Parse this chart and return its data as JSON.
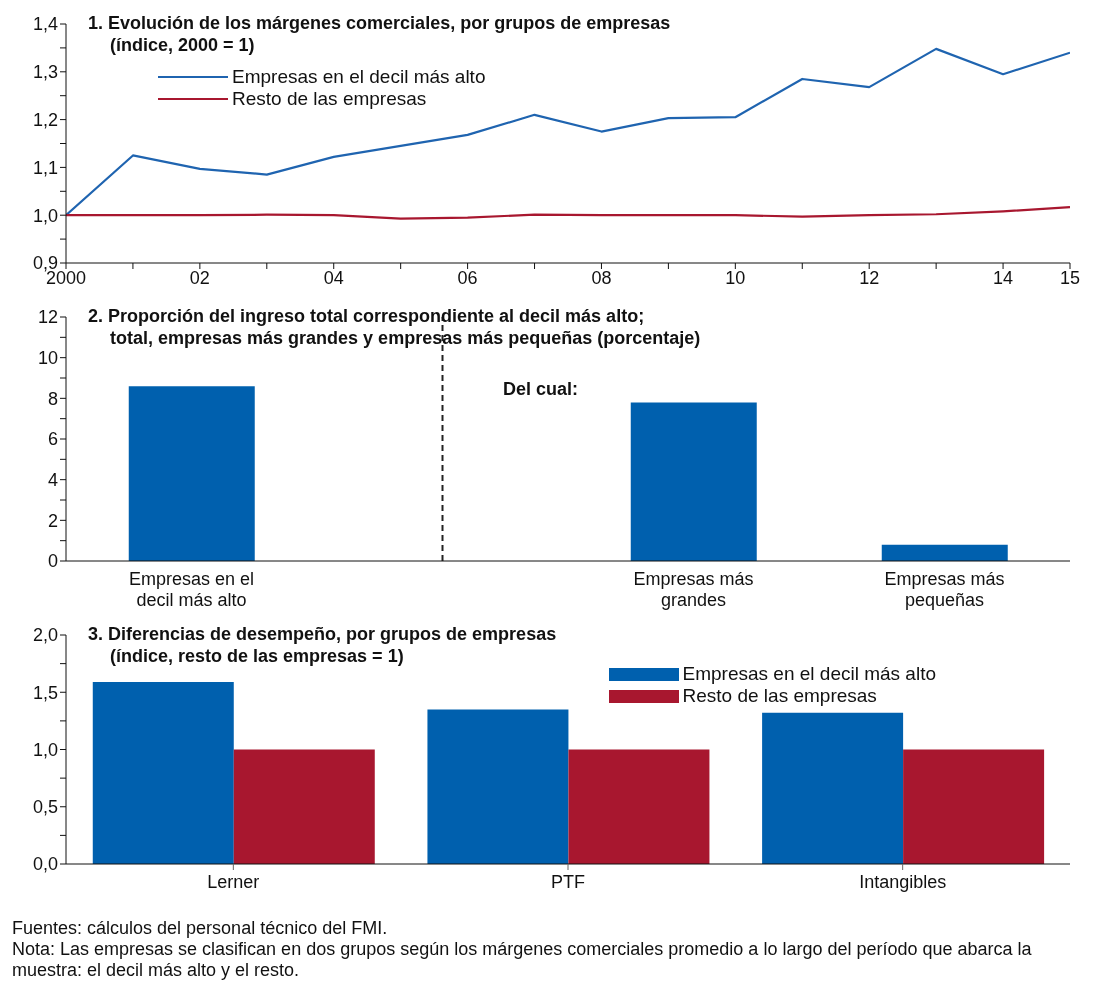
{
  "chart_data": [
    {
      "type": "line",
      "title": "1. Evolución de los márgenes comerciales, por grupos de empresas",
      "subtitle": "(índice, 2000 = 1)",
      "x": [
        2000,
        2001,
        2002,
        2003,
        2004,
        2005,
        2006,
        2007,
        2008,
        2009,
        2010,
        2011,
        2012,
        2013,
        2014,
        2015
      ],
      "series": [
        {
          "name": "Empresas en el decil más alto",
          "color": "#1f64b0",
          "values": [
            1.0,
            1.125,
            1.097,
            1.085,
            1.122,
            1.145,
            1.168,
            1.21,
            1.175,
            1.203,
            1.205,
            1.285,
            1.268,
            1.348,
            1.295,
            1.34
          ]
        },
        {
          "name": "Resto de las empresas",
          "color": "#a8172f",
          "values": [
            1.0,
            1.0,
            1.0,
            1.001,
            1.0,
            0.993,
            0.995,
            1.001,
            1.0,
            1.0,
            1.0,
            0.997,
            1.0,
            1.002,
            1.008,
            1.017
          ]
        }
      ],
      "xlim": [
        2000,
        2015
      ],
      "xticks": [
        {
          "value": 2000,
          "label": "2000"
        },
        {
          "value": 2001,
          "label": null
        },
        {
          "value": 2002,
          "label": "02"
        },
        {
          "value": 2003,
          "label": null
        },
        {
          "value": 2004,
          "label": "04"
        },
        {
          "value": 2005,
          "label": null
        },
        {
          "value": 2006,
          "label": "06"
        },
        {
          "value": 2007,
          "label": null
        },
        {
          "value": 2008,
          "label": "08"
        },
        {
          "value": 2009,
          "label": null
        },
        {
          "value": 2010,
          "label": "10"
        },
        {
          "value": 2011,
          "label": null
        },
        {
          "value": 2012,
          "label": "12"
        },
        {
          "value": 2013,
          "label": null
        },
        {
          "value": 2014,
          "label": "14"
        },
        {
          "value": 2015,
          "label": "15"
        }
      ],
      "ylim": [
        0.9,
        1.4
      ],
      "yticks": [
        {
          "value": 0.9,
          "label": "0,9"
        },
        {
          "value": 0.95,
          "label": null
        },
        {
          "value": 1.0,
          "label": "1,0"
        },
        {
          "value": 1.05,
          "label": null
        },
        {
          "value": 1.1,
          "label": "1,1"
        },
        {
          "value": 1.15,
          "label": null
        },
        {
          "value": 1.2,
          "label": "1,2"
        },
        {
          "value": 1.25,
          "label": null
        },
        {
          "value": 1.3,
          "label": "1,3"
        },
        {
          "value": 1.35,
          "label": null
        },
        {
          "value": 1.4,
          "label": "1,4"
        }
      ],
      "legend": "top left",
      "marker": "none",
      "line_style": "solid"
    },
    {
      "type": "bar",
      "title": "2. Proporción del ingreso total correspondiente al decil más alto;",
      "subtitle": "total, empresas más grandes y empresas más pequeñas (porcentaje)",
      "categories": [
        "Empresas en el decil más alto",
        null,
        "Empresas más grandes",
        "Empresas más pequeñas"
      ],
      "values": [
        8.6,
        null,
        7.8,
        0.8
      ],
      "color": "#0060ae",
      "ylim": [
        0,
        12
      ],
      "yticks": [
        0,
        {
          "value": 1,
          "label": null
        },
        2,
        {
          "value": 3,
          "label": null
        },
        4,
        {
          "value": 5,
          "label": null
        },
        6,
        {
          "value": 7,
          "label": null
        },
        8,
        {
          "value": 9,
          "label": null
        },
        10,
        {
          "value": 11,
          "label": null
        },
        12
      ],
      "ref_lines": [
        {
          "axis": "x",
          "value": null,
          "line_style": "dashed",
          "color": "#222222"
        }
      ],
      "annotations": [
        "Del cual:"
      ]
    },
    {
      "type": "bar",
      "title": "3. Diferencias de desempeño, por grupos de empresas",
      "subtitle": "(índice, resto de las empresas = 1)",
      "categories": [
        "Lerner",
        "PTF",
        "Intangibles"
      ],
      "series": [
        {
          "name": "Empresas en el decil más alto",
          "color": "#0060ae",
          "values": [
            1.59,
            1.35,
            1.32
          ]
        },
        {
          "name": "Resto de las empresas",
          "color": "#a8172f",
          "values": [
            1.0,
            1.0,
            1.0
          ]
        }
      ],
      "ylim": [
        0,
        2.0
      ],
      "yticks": [
        {
          "value": 0,
          "label": "0,0"
        },
        {
          "value": 0.25,
          "label": null
        },
        {
          "value": 0.5,
          "label": "0,5"
        },
        {
          "value": 0.75,
          "label": null
        },
        {
          "value": 1.0,
          "label": "1,0"
        },
        {
          "value": 1.25,
          "label": null
        },
        {
          "value": 1.5,
          "label": "1,5"
        },
        {
          "value": 1.75,
          "label": null
        },
        {
          "value": 2.0,
          "label": "2,0"
        }
      ],
      "legend": "top right",
      "annotations": [
        "Fuentes: cálculos del personal técnico del FMI.",
        "Nota: Las empresas se clasifican en dos grupos según los márgenes comerciales promedio a lo largo del período que abarca la muestra: el decil más alto y el resto."
      ]
    }
  ]
}
